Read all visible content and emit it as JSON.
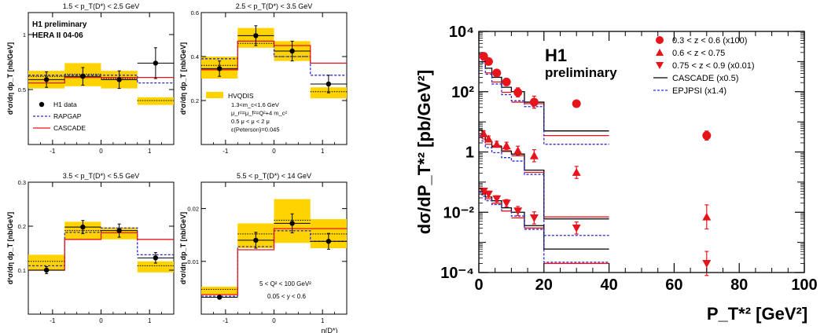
{
  "chart_data": [
    {
      "type": "scatter",
      "title": "1.5 < p_T(D*) < 2.5 GeV",
      "ylabel": "d²σ/dη dp_T [nb/GeV]",
      "xlim": [
        -1.5,
        1.5
      ],
      "ylim": [
        0,
        1.2
      ],
      "xticks": [
        "-1",
        "0",
        "1"
      ],
      "yticks": [
        "0.5",
        "1"
      ],
      "text_lines": [
        "H1 preliminary",
        "HERA II 04-06"
      ],
      "legend": {
        "data": "H1 data",
        "rapgap": "RAPGAP",
        "cascade": "CASCADE"
      },
      "bins": [
        -1.5,
        -0.75,
        0,
        0.75,
        1.5
      ],
      "data": {
        "x": [
          -1.125,
          -0.375,
          0.375,
          1.125
        ],
        "y": [
          0.59,
          0.62,
          0.59,
          0.74
        ],
        "err": [
          0.07,
          0.08,
          0.08,
          0.14
        ]
      },
      "band": {
        "lo": [
          0.51,
          0.53,
          0.51,
          0.36
        ],
        "hi": [
          0.67,
          0.74,
          0.67,
          0.43
        ]
      },
      "hvqdis": [
        0.62,
        0.64,
        0.6,
        0.4
      ],
      "rapgap": [
        0.63,
        0.63,
        0.63,
        0.56
      ],
      "cascade": [
        0.56,
        0.61,
        0.61,
        0.61
      ]
    },
    {
      "type": "scatter",
      "title": "2.5 < p_T(D*) < 3.5 GeV",
      "ylabel": "d²σ/dη dp_T [nb/GeV]",
      "xlim": [
        -1.5,
        1.5
      ],
      "ylim": [
        0,
        0.6
      ],
      "xticks": [
        "-1",
        "0",
        "1"
      ],
      "yticks": [
        "0.2",
        "0.4",
        "0.6"
      ],
      "legend": {
        "hvqdis": "HVQDIS"
      },
      "hvqdis_params": [
        "1.3<m_c<1.6 GeV",
        "μ_r²=μ_f²=Q²+4 m_c²",
        "0.5 μ < μ < 2 μ",
        "ε(Peterson)=0.045"
      ],
      "bins": [
        -1.5,
        -0.75,
        0,
        0.75,
        1.5
      ],
      "data": {
        "x": [
          -1.125,
          -0.375,
          0.375,
          1.125
        ],
        "y": [
          0.345,
          0.495,
          0.425,
          0.275
        ],
        "err": [
          0.035,
          0.045,
          0.045,
          0.04
        ]
      },
      "band": {
        "lo": [
          0.3,
          0.44,
          0.38,
          0.21
        ],
        "hi": [
          0.4,
          0.53,
          0.47,
          0.26
        ]
      },
      "hvqdis": [
        0.36,
        0.46,
        0.4,
        0.24
      ],
      "rapgap": [
        0.39,
        0.47,
        0.4,
        0.315
      ],
      "cascade": [
        0.34,
        0.47,
        0.45,
        0.37
      ]
    },
    {
      "type": "scatter",
      "title": "3.5 < p_T(D*) < 5.5 GeV",
      "ylabel": "d²σ/dη dp_T [nb/GeV]",
      "xlim": [
        -1.5,
        1.5
      ],
      "ylim": [
        0,
        0.3
      ],
      "xticks": [
        "-1",
        "0",
        "1"
      ],
      "yticks": [
        "0.1",
        "0.2",
        "0.3"
      ],
      "bins": [
        -1.5,
        -0.75,
        0,
        0.75,
        1.5
      ],
      "data": {
        "x": [
          -1.125,
          -0.375,
          0.375,
          1.125
        ],
        "y": [
          0.1,
          0.198,
          0.19,
          0.128
        ],
        "err": [
          0.008,
          0.015,
          0.015,
          0.012
        ]
      },
      "band": {
        "lo": [
          0.1,
          0.17,
          0.17,
          0.095
        ],
        "hi": [
          0.135,
          0.21,
          0.197,
          0.12
        ]
      },
      "hvqdis": [
        0.12,
        0.19,
        0.185,
        0.11
      ],
      "rapgap": [
        0.11,
        0.186,
        0.196,
        0.135
      ],
      "cascade": [
        0.1,
        0.17,
        0.185,
        0.17
      ]
    },
    {
      "type": "scatter",
      "title": "5.5 < p_T(D*) < 14 GeV",
      "ylabel": "d²σ/dη dp_T [nb/GeV]",
      "xlabel": "η(D*)",
      "xlim": [
        -1.5,
        1.5
      ],
      "ylim": [
        0,
        0.025
      ],
      "xticks": [
        "-1",
        "0",
        "1"
      ],
      "yticks": [
        "0.01",
        "0.02"
      ],
      "text_lines": [
        "5 < Q² < 100 GeV²",
        "0.05 < y < 0.6"
      ],
      "bins": [
        -1.5,
        -0.75,
        0,
        0.75,
        1.5
      ],
      "data": {
        "x": [
          -1.125,
          -0.375,
          0.375,
          1.125
        ],
        "y": [
          0.0032,
          0.014,
          0.0172,
          0.0138
        ],
        "err": [
          0.0003,
          0.0015,
          0.0018,
          0.0015
        ]
      },
      "band": {
        "lo": [
          0.0036,
          0.0125,
          0.0135,
          0.0125
        ],
        "hi": [
          0.0052,
          0.0172,
          0.0218,
          0.018
        ]
      },
      "hvqdis": [
        0.0047,
        0.0152,
        0.0178,
        0.0152
      ],
      "rapgap": [
        0.0034,
        0.0128,
        0.0158,
        0.0138
      ],
      "cascade": [
        0.0037,
        0.0122,
        0.0162,
        0.0162
      ]
    },
    {
      "type": "scatter",
      "title": "",
      "text_lines": [
        "H1",
        "preliminary"
      ],
      "xlabel": "P_T*² [GeV²]",
      "ylabel": "dσ/dP_T*² [pb/GeV²]",
      "xlim": [
        0,
        100
      ],
      "ylim": [
        0.0001,
        10000
      ],
      "yscale": "log",
      "xticks": [
        "0",
        "20",
        "40",
        "60",
        "80",
        "100"
      ],
      "yticks": [
        "10⁻⁴",
        "10⁻²",
        "1",
        "10²",
        "10⁴"
      ],
      "bins": [
        0,
        1,
        2,
        4,
        7,
        10,
        14,
        20,
        40,
        100
      ],
      "series": [
        {
          "name": "0.3  < z < 0.6  (x100)",
          "marker": "circle",
          "x": [
            1.5,
            3,
            5.5,
            8.5,
            12,
            17,
            30,
            70
          ],
          "y": [
            1500,
            1000,
            420,
            210,
            95,
            45,
            40,
            3.5
          ],
          "err": [
            0.1,
            0.1,
            0.1,
            0.12,
            0.15,
            0.2,
            0.1,
            0.15
          ],
          "cascade": [
            1800,
            1250,
            600,
            300,
            140,
            100,
            45,
            5.0
          ],
          "epjpsi": [
            1350,
            900,
            380,
            180,
            80,
            50,
            32,
            1.8
          ]
        },
        {
          "name": "0.6  < z < 0.75",
          "marker": "triangle-up",
          "x": [
            1.5,
            3,
            5.5,
            8.5,
            12,
            17,
            30,
            70
          ],
          "y": [
            4.0,
            2.7,
            1.8,
            1.6,
            1.1,
            0.75,
            0.21,
            0.007
          ],
          "err": [
            0.1,
            0.1,
            0.1,
            0.12,
            0.15,
            0.2,
            0.2,
            0.4
          ],
          "cascade": [
            5.5,
            3.8,
            2.2,
            1.5,
            1.05,
            0.85,
            0.25,
            0.006
          ],
          "epjpsi": [
            3.5,
            2.3,
            1.4,
            0.95,
            0.65,
            0.5,
            0.18,
            0.0017
          ]
        },
        {
          "name": "0.75 < z < 0.9  (x0.01)",
          "marker": "triangle-down",
          "x": [
            1.5,
            3,
            5.5,
            8.5,
            12,
            17,
            30,
            70
          ],
          "y": [
            0.05,
            0.04,
            0.028,
            0.02,
            0.011,
            0.0065,
            0.003,
            0.0002
          ],
          "err": [
            0.1,
            0.1,
            0.1,
            0.12,
            0.15,
            0.2,
            0.2,
            0.4
          ],
          "cascade": [
            0.06,
            0.045,
            0.032,
            0.024,
            0.014,
            0.01,
            0.0036,
            0.0006
          ],
          "epjpsi": [
            0.045,
            0.034,
            0.024,
            0.018,
            0.011,
            0.0075,
            0.0027,
            0.00022
          ]
        }
      ],
      "legend": {
        "cascade": "CASCADE (x0.5)",
        "epjpsi": "EPJPSI (x1.4)"
      }
    }
  ]
}
